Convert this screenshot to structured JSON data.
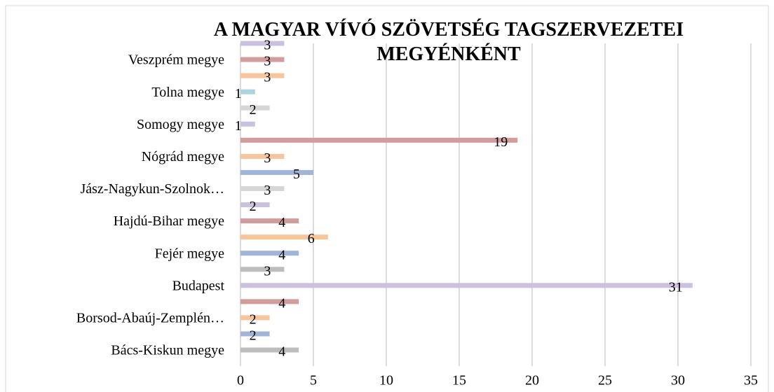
{
  "chart_data": {
    "type": "bar",
    "orientation": "horizontal",
    "title": "A MAGYAR VÍVÓ SZÖVETSÉG TAGSZERVEZETEI MEGYÉNKÉNT",
    "categories": [
      "Bács-Kiskun megye",
      null,
      "Borsod-Abaúj-Zemplén…",
      null,
      "Budapest",
      null,
      "Fejér megye",
      null,
      "Hajdú-Bihar megye",
      null,
      "Jász-Nagykun-Szolnok…",
      null,
      "Nógrád megye",
      null,
      "Somogy megye",
      null,
      "Tolna megye",
      null,
      "Veszprém megye",
      null
    ],
    "values": [
      4,
      2,
      2,
      4,
      31,
      3,
      4,
      6,
      4,
      2,
      3,
      5,
      3,
      19,
      1,
      2,
      1,
      3,
      3,
      3
    ],
    "colors": [
      "#bdbdbd",
      "#9fb5d9",
      "#f8c59b",
      "#d49b9b",
      "#cac0df",
      "#bdbdbd",
      "#9fb5d9",
      "#f8c59b",
      "#d49b9b",
      "#cac0df",
      "#d6d6d6",
      "#9fb5d9",
      "#f8c59b",
      "#d49b9b",
      "#cac0df",
      "#d6d6d6",
      "#a9d4e0",
      "#f8c59b",
      "#d49b9b",
      "#cac0df"
    ],
    "xlim": [
      0,
      35
    ],
    "xticks": [
      0,
      5,
      10,
      15,
      20,
      25,
      30,
      35
    ],
    "grid": true
  }
}
